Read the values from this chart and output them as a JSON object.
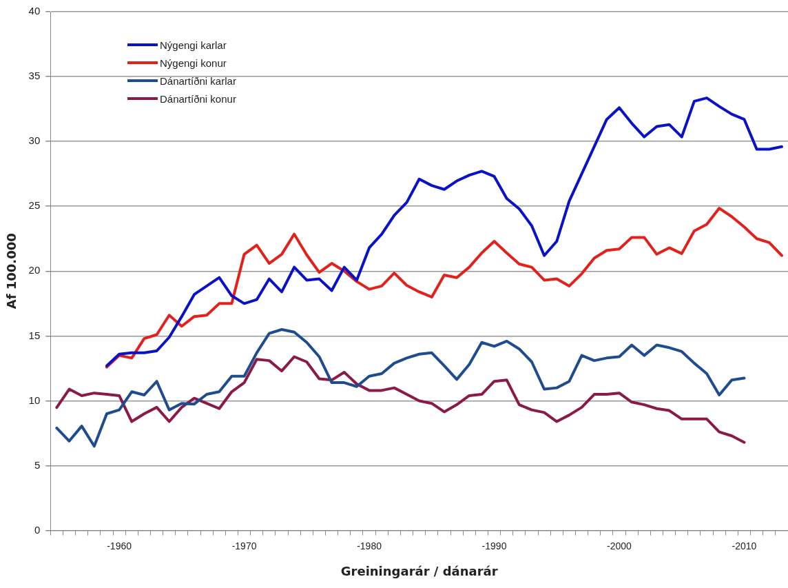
{
  "chart_data": {
    "type": "line",
    "xlabel": "Greiningarár / dánarár",
    "ylabel": "Af 100.000",
    "categories": [
      null,
      null,
      null,
      null,
      null,
      "-1960",
      null,
      null,
      null,
      null,
      null,
      null,
      null,
      null,
      null,
      "-1970",
      null,
      null,
      null,
      null,
      null,
      null,
      null,
      null,
      null,
      "-1980",
      null,
      null,
      null,
      null,
      null,
      null,
      null,
      null,
      null,
      "-1990",
      null,
      null,
      null,
      null,
      null,
      null,
      null,
      null,
      null,
      "-2000",
      null,
      null,
      null,
      null,
      null,
      null,
      null,
      null,
      null,
      "-2010",
      null,
      null,
      null
    ],
    "series": [
      {
        "name": "Nýgengi karlar",
        "color": "#0a12c8",
        "values": [
          null,
          null,
          null,
          null,
          12.7,
          13.6,
          13.7,
          13.7,
          13.85,
          14.9,
          16.5,
          18.2,
          18.85,
          19.5,
          18.1,
          17.5,
          17.8,
          19.4,
          18.4,
          20.3,
          19.3,
          19.4,
          18.5,
          20.3,
          19.3,
          21.8,
          22.85,
          24.3,
          25.3,
          27.1,
          26.6,
          26.3,
          26.95,
          27.4,
          27.7,
          27.3,
          25.6,
          24.8,
          23.5,
          21.2,
          22.3,
          25.4,
          27.5,
          29.6,
          31.7,
          32.6,
          31.4,
          30.35,
          31.15,
          31.3,
          30.35,
          33.1,
          33.35,
          32.7,
          32.1,
          31.7,
          29.4,
          29.4,
          29.6
        ]
      },
      {
        "name": "Nýgengi konur",
        "color": "#e3211c",
        "values": [
          null,
          null,
          null,
          null,
          12.6,
          13.5,
          13.3,
          14.8,
          15.1,
          16.6,
          15.75,
          16.5,
          16.6,
          17.5,
          17.5,
          21.3,
          22.0,
          20.6,
          21.3,
          22.85,
          21.25,
          19.9,
          20.6,
          20.0,
          19.2,
          18.6,
          18.85,
          19.85,
          18.9,
          18.4,
          18.0,
          19.7,
          19.5,
          20.3,
          21.4,
          22.3,
          21.4,
          20.55,
          20.3,
          19.3,
          19.4,
          18.85,
          19.8,
          21.0,
          21.6,
          21.7,
          22.6,
          22.6,
          21.3,
          21.8,
          21.35,
          23.1,
          23.6,
          24.85,
          24.2,
          23.4,
          22.5,
          22.2,
          21.2
        ]
      },
      {
        "name": "Dánartíðni karlar",
        "color": "#1f4b8f",
        "values": [
          7.9,
          6.9,
          8.05,
          6.5,
          9.0,
          9.3,
          10.7,
          10.45,
          11.5,
          9.3,
          9.8,
          9.75,
          10.5,
          10.7,
          11.9,
          11.9,
          13.7,
          15.2,
          15.5,
          15.3,
          14.5,
          13.4,
          11.4,
          11.4,
          11.1,
          11.9,
          12.1,
          12.9,
          13.3,
          13.6,
          13.7,
          12.7,
          11.65,
          12.8,
          14.5,
          14.2,
          14.6,
          14.0,
          13.0,
          10.9,
          11.0,
          11.5,
          13.5,
          13.1,
          13.3,
          13.4,
          14.3,
          13.5,
          14.3,
          14.1,
          13.8,
          12.9,
          12.1,
          10.45,
          11.6,
          11.75,
          null,
          null,
          null
        ]
      },
      {
        "name": "Dánartíðni konur",
        "color": "#8a1a47",
        "values": [
          9.48,
          10.9,
          10.4,
          10.6,
          10.5,
          10.4,
          8.4,
          9.0,
          9.5,
          8.4,
          9.5,
          10.2,
          9.8,
          9.4,
          10.7,
          11.4,
          13.2,
          13.1,
          12.3,
          13.4,
          13.0,
          11.7,
          11.6,
          12.2,
          11.3,
          10.8,
          10.8,
          11.0,
          10.5,
          10.0,
          9.8,
          9.15,
          9.7,
          10.4,
          10.5,
          11.5,
          11.6,
          9.7,
          9.3,
          9.1,
          8.4,
          8.9,
          9.5,
          10.5,
          10.5,
          10.6,
          9.9,
          9.7,
          9.4,
          9.25,
          8.6,
          8.6,
          8.6,
          7.6,
          7.3,
          6.8,
          null,
          null,
          null
        ]
      }
    ],
    "ylim": [
      0,
      40
    ],
    "yticks": [
      0,
      5,
      10,
      15,
      20,
      25,
      30,
      35,
      40
    ],
    "grid": "y",
    "legend": "top left",
    "line_style": "solid",
    "marker": "none"
  }
}
